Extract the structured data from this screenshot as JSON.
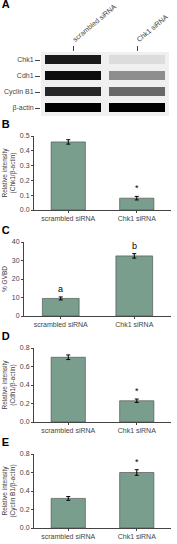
{
  "chart_data": [
    {
      "type": "heatmap",
      "title": "A",
      "x": [
        "scrambled siRNA",
        "Chk1 siRNA"
      ],
      "y": [
        "Chk1",
        "Cdh1",
        "Cyclin B1",
        "β-actin"
      ],
      "cells": [
        [
          0.85,
          0.1
        ],
        [
          0.9,
          0.4
        ],
        [
          0.8,
          0.55
        ],
        [
          0.95,
          0.95
        ]
      ],
      "grid": false
    },
    {
      "type": "bar",
      "title": "B",
      "categories": [
        "scrambled siRNA",
        "Chk1 siRNA"
      ],
      "values": [
        0.46,
        0.08
      ],
      "errors": [
        0.015,
        0.012
      ],
      "ylabel": "Relative intensity\n(Chk1/β-actin)",
      "ylim": [
        0,
        0.5
      ],
      "yticks": [
        {
          "value": 0,
          "label": "0.0"
        },
        0.1,
        0.2,
        0.3,
        0.4,
        0.5
      ],
      "color": "#7a9e8e",
      "grid": false,
      "annotations": [
        {
          "text": "*",
          "category": "Chk1 siRNA"
        }
      ]
    },
    {
      "type": "bar",
      "title": "C",
      "categories": [
        "scrambled siRNA",
        "Chk1 siRNA"
      ],
      "values": [
        9.5,
        32.5
      ],
      "errors": [
        0.8,
        1.2
      ],
      "ylabel": "% GVBD",
      "ylim": [
        0,
        40
      ],
      "yticks": [
        0,
        10,
        20,
        30,
        40
      ],
      "color": "#7a9e8e",
      "grid": false,
      "annotations": [
        {
          "text": "a",
          "category": "scrambled siRNA"
        },
        {
          "text": "b",
          "category": "Chk1 siRNA"
        }
      ]
    },
    {
      "type": "bar",
      "title": "D",
      "categories": [
        "scrambled siRNA",
        "Chk1 siRNA"
      ],
      "values": [
        0.7,
        0.23
      ],
      "errors": [
        0.025,
        0.018
      ],
      "ylabel": "Relative intensity\n(Cdh1/β-actin)",
      "ylim": [
        0,
        0.8
      ],
      "yticks": [
        {
          "value": 0,
          "label": "0.0"
        },
        0.2,
        0.4,
        0.6,
        0.8
      ],
      "color": "#7a9e8e",
      "grid": false,
      "annotations": [
        {
          "text": "*",
          "category": "Chk1 siRNA"
        }
      ]
    },
    {
      "type": "bar",
      "title": "E",
      "categories": [
        "scrambled siRNA",
        "Chk1 siRNA"
      ],
      "values": [
        0.32,
        0.6
      ],
      "errors": [
        0.02,
        0.03
      ],
      "ylabel": "Relative intensity\n(Cyclin B1/β-actin)",
      "ylim": [
        0,
        0.8
      ],
      "yticks": [
        {
          "value": 0,
          "label": "0.0"
        },
        0.2,
        0.4,
        0.6,
        0.8
      ],
      "color": "#7a9e8e",
      "grid": false,
      "annotations": [
        {
          "text": "*",
          "category": "Chk1 siRNA"
        }
      ]
    }
  ]
}
